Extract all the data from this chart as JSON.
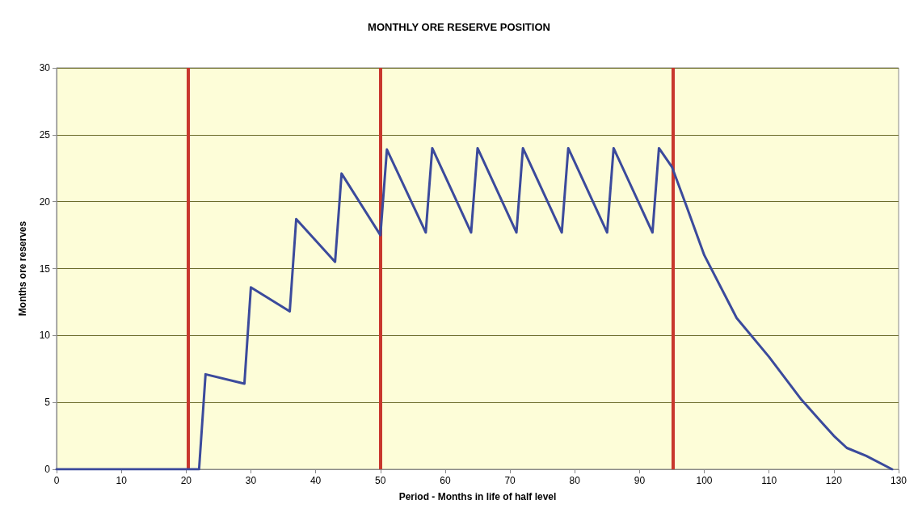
{
  "chart_data": {
    "type": "line",
    "title": "MONTHLY ORE RESERVE POSITION",
    "xlabel": "Period - Months in life of half level",
    "ylabel": "Months ore reserves",
    "x": [
      0,
      10,
      20,
      22,
      23,
      29,
      30,
      36,
      37,
      43,
      44,
      50,
      51,
      57,
      58,
      64,
      65,
      71,
      72,
      78,
      79,
      85,
      86,
      92,
      93,
      95,
      97,
      100,
      105,
      110,
      115,
      120,
      122,
      125,
      129
    ],
    "series": [
      {
        "color": "#3b4a9c",
        "values": [
          0,
          0,
          0,
          0,
          7.1,
          6.4,
          13.6,
          11.8,
          18.7,
          15.5,
          22.1,
          17.5,
          23.9,
          17.7,
          24,
          17.7,
          24,
          17.7,
          24,
          17.7,
          24,
          17.7,
          24,
          17.7,
          24,
          22.6,
          20,
          16,
          11.3,
          8.4,
          5.2,
          2.5,
          1.6,
          1,
          0
        ]
      }
    ],
    "xlim": [
      0,
      130
    ],
    "xticks": [
      0,
      10,
      20,
      30,
      40,
      50,
      60,
      70,
      80,
      90,
      100,
      110,
      120,
      130
    ],
    "ylim": [
      0,
      30
    ],
    "yticks": [
      0,
      5,
      10,
      15,
      20,
      25,
      30
    ],
    "grid": "y",
    "marker": "none",
    "line_style": "solid",
    "ref_lines": [
      {
        "axis": "x",
        "value": 20.3,
        "color": "#c8372d"
      },
      {
        "axis": "x",
        "value": 50,
        "color": "#c8372d"
      },
      {
        "axis": "x",
        "value": 95.2,
        "color": "#c8372d"
      }
    ]
  }
}
